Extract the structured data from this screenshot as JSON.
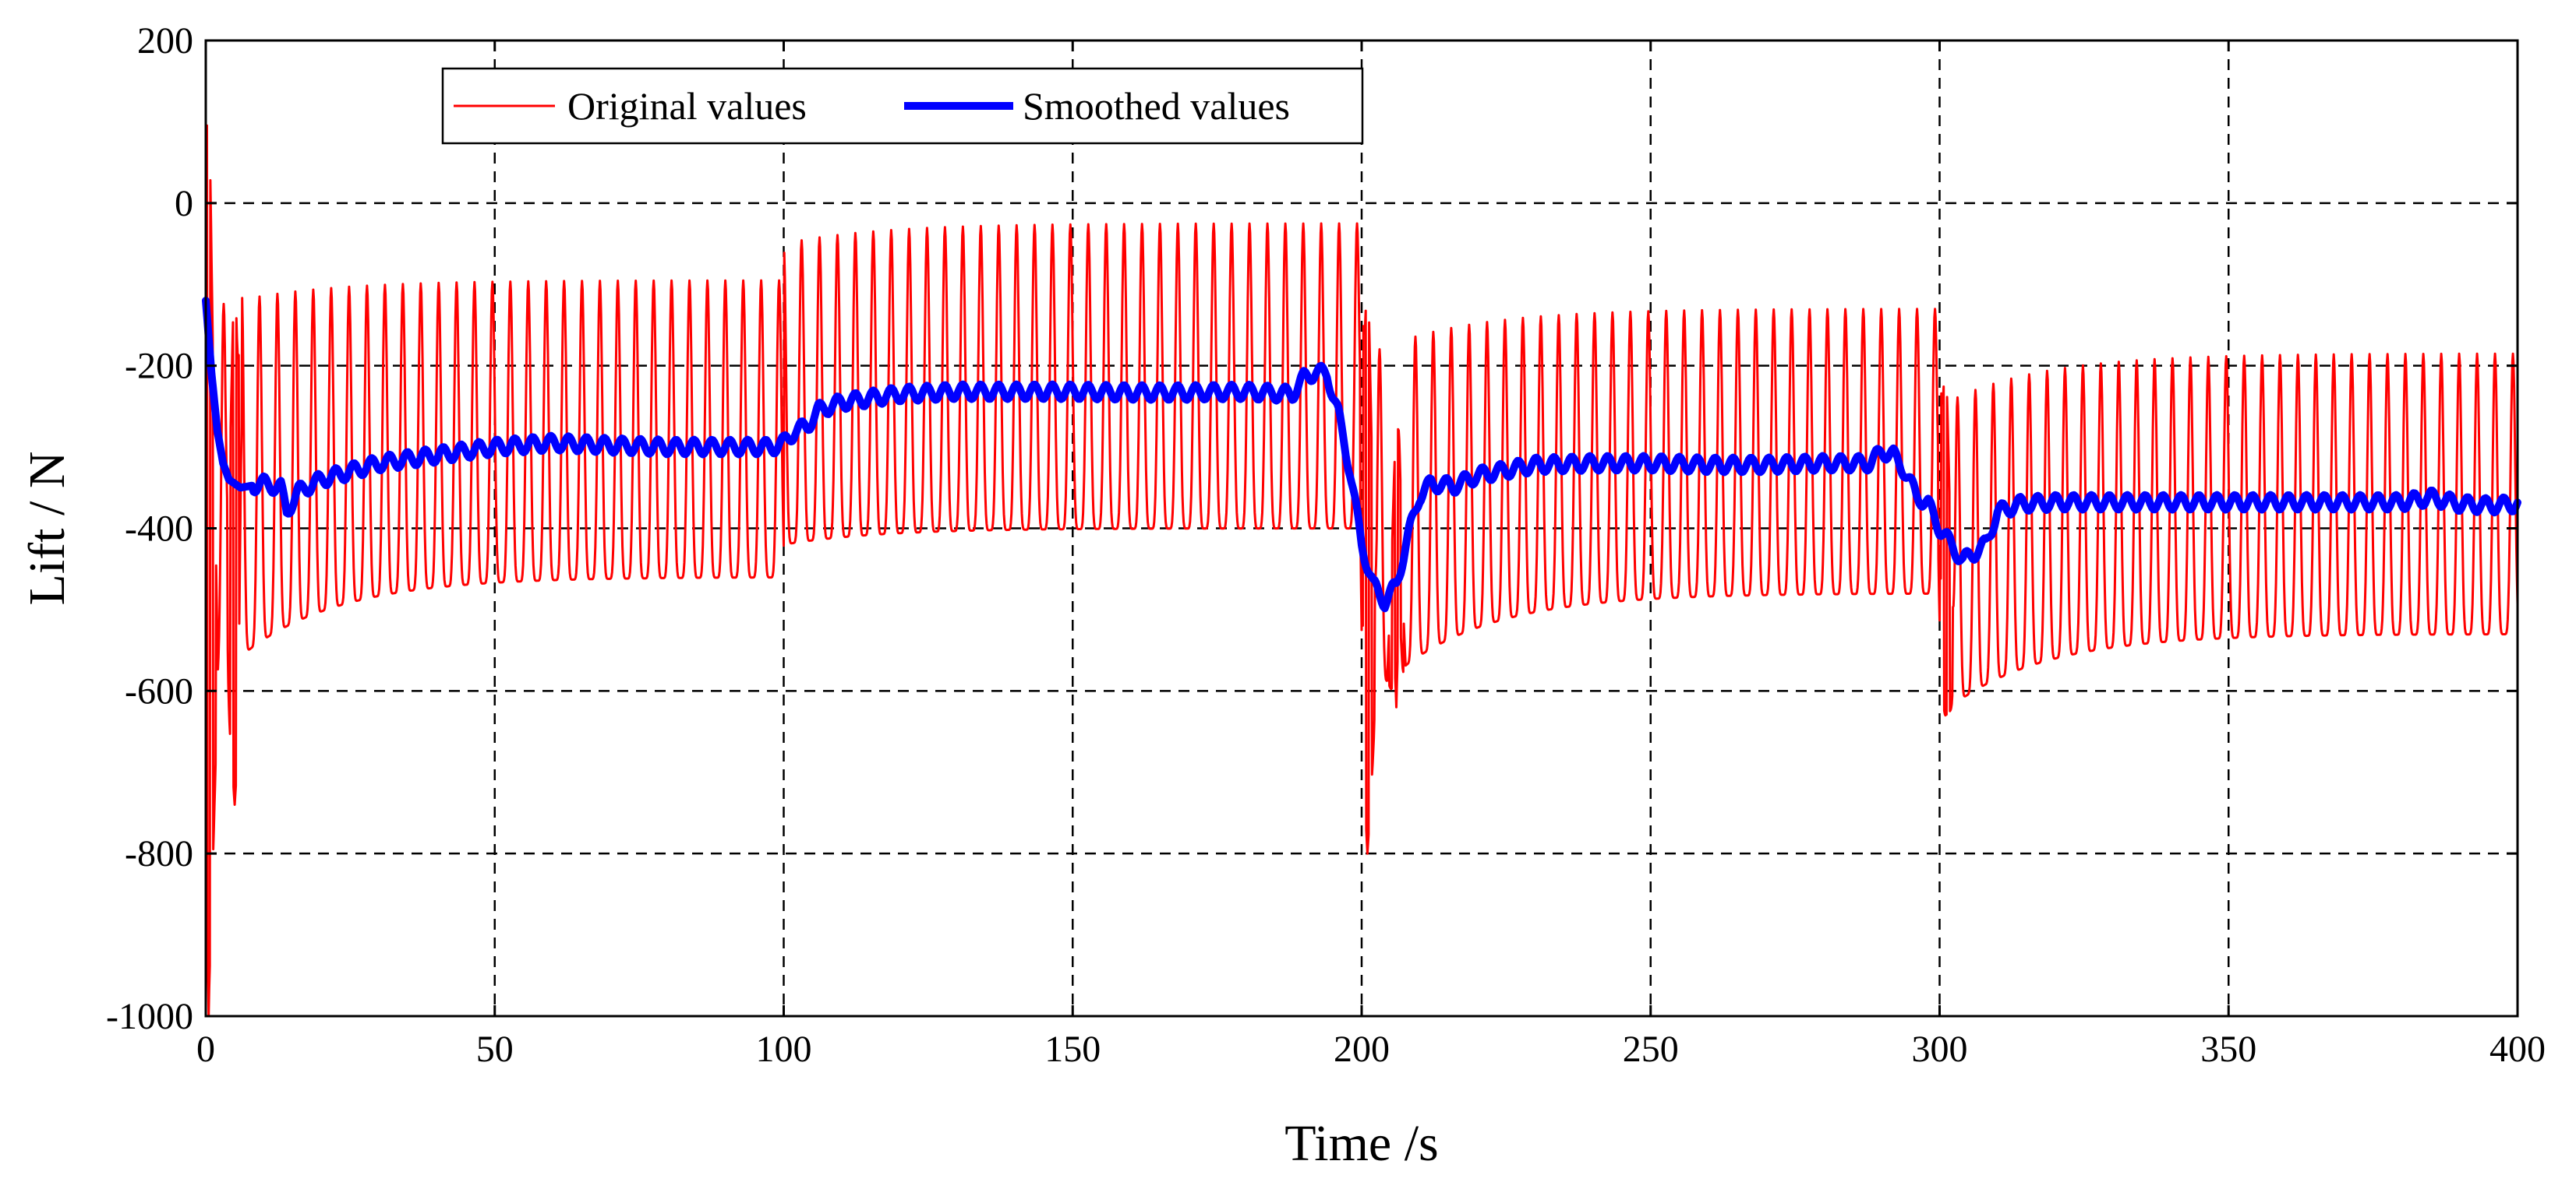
{
  "chart_data": {
    "type": "line",
    "title": "",
    "xlabel": "Time /s",
    "ylabel": "Lift / N",
    "xlim": [
      0,
      400
    ],
    "ylim": [
      -1000,
      200
    ],
    "x_ticks": [
      0,
      50,
      100,
      150,
      200,
      250,
      300,
      350,
      400
    ],
    "y_ticks": [
      200,
      0,
      -200,
      -400,
      -600,
      -800,
      -1000
    ],
    "x_tick_labels": [
      "0",
      "50",
      "100",
      "150",
      "200",
      "250",
      "300",
      "350",
      "400"
    ],
    "y_tick_labels": [
      "200",
      "0",
      "-200",
      "-400",
      "-600",
      "-800",
      "-1000"
    ],
    "grid": true,
    "legend_position": "top-left",
    "series": [
      {
        "name": "Original values",
        "color": "#ff0000",
        "style": "thin-oscillating",
        "oscillation_period_s": 3.1,
        "segments": [
          {
            "t_start": 0,
            "t_end": 100,
            "upper_peak": [
              -130,
              -95
            ],
            "lower_trough": [
              -600,
              -460
            ]
          },
          {
            "t_start": 100,
            "t_end": 200,
            "upper_peak": [
              -50,
              -25
            ],
            "lower_trough": [
              -420,
              -400
            ]
          },
          {
            "t_start": 200,
            "t_end": 300,
            "upper_peak": [
              -190,
              -130
            ],
            "lower_trough": [
              -620,
              -480
            ]
          },
          {
            "t_start": 300,
            "t_end": 400,
            "upper_peak": [
              -250,
              -185
            ],
            "lower_trough": [
              -630,
              -530
            ]
          }
        ],
        "transients": [
          {
            "t": 0.5,
            "min": -1000,
            "max": 160
          },
          {
            "t": 5,
            "min": -740,
            "max": -50
          },
          {
            "t": 201,
            "min": -800,
            "max": -40
          },
          {
            "t": 206,
            "min": -620,
            "max": -300
          },
          {
            "t": 301,
            "min": -630,
            "max": -150
          }
        ]
      },
      {
        "name": "Smoothed values",
        "color": "#0000ff",
        "style": "thick",
        "x": [
          0,
          1,
          2,
          3,
          4,
          6,
          10,
          13,
          14,
          16,
          20,
          30,
          40,
          50,
          60,
          70,
          80,
          90,
          98,
          100,
          102,
          104,
          106,
          110,
          120,
          130,
          140,
          150,
          160,
          170,
          180,
          188,
          190,
          192,
          194,
          196,
          198,
          200,
          202,
          204,
          206,
          208,
          210,
          212,
          216,
          220,
          230,
          240,
          250,
          260,
          270,
          280,
          288,
          290,
          292,
          294,
          296,
          298,
          300,
          302,
          304,
          306,
          308,
          310,
          314,
          320,
          330,
          340,
          350,
          360,
          370,
          380,
          385,
          390,
          395,
          400
        ],
        "values": [
          -120,
          -210,
          -280,
          -320,
          -340,
          -350,
          -345,
          -350,
          -380,
          -355,
          -340,
          -320,
          -310,
          -300,
          -295,
          -298,
          -300,
          -300,
          -300,
          -295,
          -280,
          -275,
          -255,
          -245,
          -235,
          -232,
          -232,
          -232,
          -233,
          -233,
          -232,
          -235,
          -215,
          -208,
          -210,
          -260,
          -330,
          -420,
          -470,
          -490,
          -470,
          -410,
          -360,
          -345,
          -348,
          -335,
          -322,
          -320,
          -320,
          -322,
          -322,
          -320,
          -320,
          -305,
          -310,
          -330,
          -360,
          -370,
          -400,
          -420,
          -440,
          -430,
          -420,
          -380,
          -370,
          -368,
          -368,
          -368,
          -368,
          -368,
          -368,
          -368,
          -362,
          -370,
          -372,
          -370
        ]
      }
    ]
  }
}
